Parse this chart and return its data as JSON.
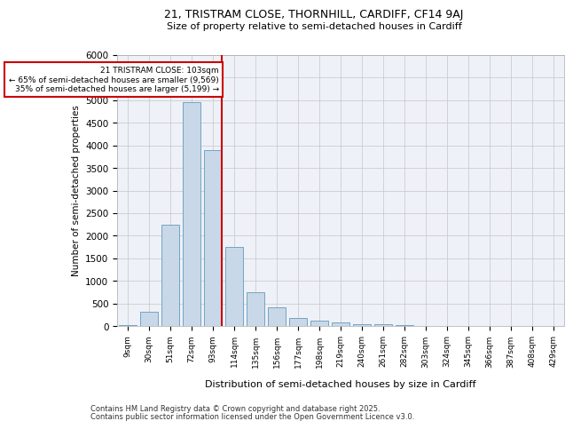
{
  "title1": "21, TRISTRAM CLOSE, THORNHILL, CARDIFF, CF14 9AJ",
  "title2": "Size of property relative to semi-detached houses in Cardiff",
  "xlabel": "Distribution of semi-detached houses by size in Cardiff",
  "ylabel": "Number of semi-detached properties",
  "footnote1": "Contains HM Land Registry data © Crown copyright and database right 2025.",
  "footnote2": "Contains public sector information licensed under the Open Government Licence v3.0.",
  "annotation_line1": "21 TRISTRAM CLOSE: 103sqm",
  "annotation_line2": "← 65% of semi-detached houses are smaller (9,569)",
  "annotation_line3": "35% of semi-detached houses are larger (5,199) →",
  "bar_color": "#c8d8e8",
  "bar_edge_color": "#6699bb",
  "vline_color": "#cc0000",
  "grid_color": "#cccccc",
  "bg_color": "#eef2f8",
  "categories": [
    "9sqm",
    "30sqm",
    "51sqm",
    "72sqm",
    "93sqm",
    "114sqm",
    "135sqm",
    "156sqm",
    "177sqm",
    "198sqm",
    "219sqm",
    "240sqm",
    "261sqm",
    "282sqm",
    "303sqm",
    "324sqm",
    "345sqm",
    "366sqm",
    "387sqm",
    "408sqm",
    "429sqm"
  ],
  "values": [
    20,
    320,
    2250,
    4950,
    3900,
    1750,
    750,
    420,
    170,
    120,
    70,
    45,
    30,
    10,
    5,
    3,
    2,
    1,
    0,
    0,
    0
  ],
  "ylim": [
    0,
    6000
  ],
  "yticks": [
    0,
    500,
    1000,
    1500,
    2000,
    2500,
    3000,
    3500,
    4000,
    4500,
    5000,
    5500,
    6000
  ],
  "vline_bin_index": 4,
  "bar_width": 0.85
}
